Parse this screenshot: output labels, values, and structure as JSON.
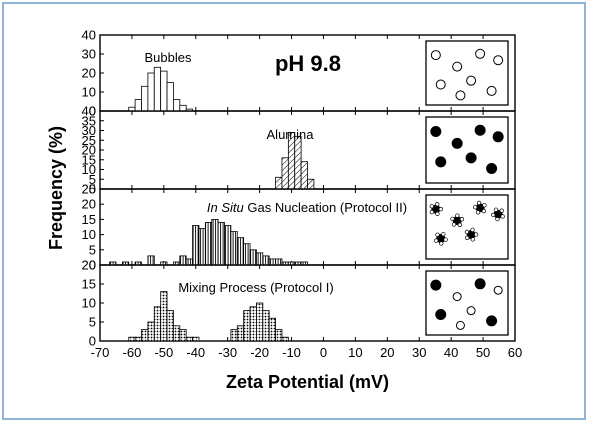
{
  "chart_data": {
    "type": "bar",
    "title": "pH 9.8",
    "xlabel": "Zeta Potential (mV)",
    "ylabel": "Frequency (%)",
    "xlim": [
      -70,
      60
    ],
    "x_ticks": [
      "-70",
      "-60",
      "-50",
      "-40",
      "-30",
      "-20",
      "-10",
      "0",
      "10",
      "20",
      "30",
      "40",
      "50",
      "60"
    ],
    "panels": [
      {
        "label": "Bubbles",
        "label_italic": "",
        "pattern": "open",
        "ylim": [
          0,
          40
        ],
        "y_ticks": [
          "0",
          "10",
          "20",
          "30",
          "40"
        ],
        "x": [
          -60,
          -58,
          -56,
          -54,
          -52,
          -50,
          -48,
          -46,
          -44,
          -42
        ],
        "values": [
          2,
          6,
          13,
          20,
          23,
          21,
          15,
          6,
          3,
          1
        ],
        "inset": "open-circles"
      },
      {
        "label": "Alumina",
        "label_italic": "",
        "pattern": "hatch",
        "ylim": [
          0,
          40
        ],
        "y_ticks": [
          "0",
          "5",
          "10",
          "15",
          "20",
          "25",
          "30",
          "35",
          "40"
        ],
        "x": [
          -14,
          -12,
          -10,
          -8,
          -6,
          -4
        ],
        "values": [
          6,
          16,
          29,
          27,
          14,
          5
        ],
        "inset": "filled-circles"
      },
      {
        "label": "Gas Nucleation (Protocol II)",
        "label_italic": "In Situ",
        "pattern": "vertical-lines",
        "ylim": [
          0,
          25
        ],
        "y_ticks": [
          "0",
          "5",
          "10",
          "15",
          "20",
          "25"
        ],
        "x": [
          -66,
          -62,
          -58,
          -54,
          -50,
          -46,
          -44,
          -42,
          -40,
          -38,
          -36,
          -34,
          -32,
          -30,
          -28,
          -26,
          -24,
          -22,
          -20,
          -18,
          -16,
          -14,
          -12,
          -10,
          -8,
          -6
        ],
        "values": [
          1,
          1,
          1,
          3,
          1,
          1,
          3,
          2,
          13,
          12,
          14,
          15,
          14,
          13,
          11,
          9,
          7,
          5,
          4,
          3,
          2,
          2,
          1,
          1,
          1,
          1
        ],
        "inset": "decorated-circles"
      },
      {
        "label": "Mixing Process (Protocol I)",
        "label_italic": "",
        "pattern": "dots",
        "ylim": [
          0,
          20
        ],
        "y_ticks": [
          "0",
          "5",
          "10",
          "15",
          "20"
        ],
        "x": [
          -60,
          -58,
          -56,
          -54,
          -52,
          -50,
          -48,
          -46,
          -44,
          -42,
          -40,
          -28,
          -26,
          -24,
          -22,
          -20,
          -18,
          -16,
          -14,
          -12
        ],
        "values": [
          1,
          1,
          3,
          5,
          9,
          13,
          8,
          4,
          3,
          1,
          1,
          3,
          4,
          8,
          9,
          10,
          8,
          6,
          3,
          1
        ],
        "inset": "mixed-circles"
      }
    ]
  }
}
